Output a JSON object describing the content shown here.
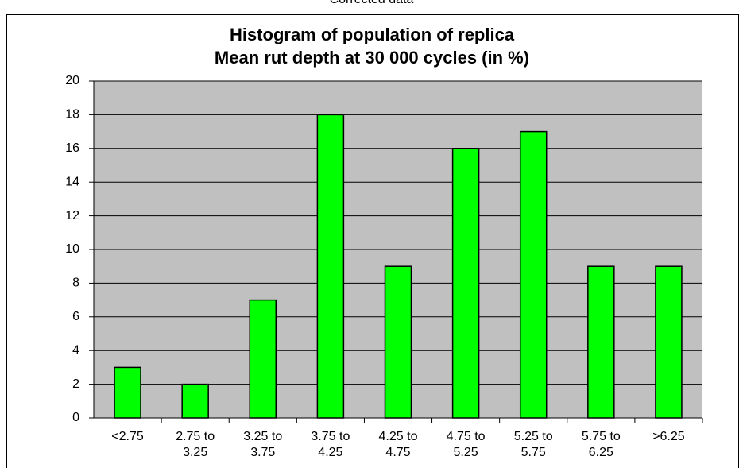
{
  "header": {
    "note": "Corrected data"
  },
  "chart_data": {
    "type": "bar",
    "title": "Histogram of population of replica",
    "subtitle": "Mean rut depth at 30 000 cycles (in %)",
    "categories": [
      "<2.75",
      "2.75 to 3.25",
      "3.25 to 3.75",
      "3.75 to 4.25",
      "4.25 to 4.75",
      "4.75 to 5.25",
      "5.25 to 5.75",
      "5.75 to 6.25",
      ">6.25"
    ],
    "values": [
      3,
      2,
      7,
      18,
      9,
      16,
      17,
      9,
      9
    ],
    "color": "#00ff00",
    "ylim": [
      0,
      20
    ],
    "yticks": [
      0,
      2,
      4,
      6,
      8,
      10,
      12,
      14,
      16,
      18,
      20
    ],
    "grid": true
  }
}
